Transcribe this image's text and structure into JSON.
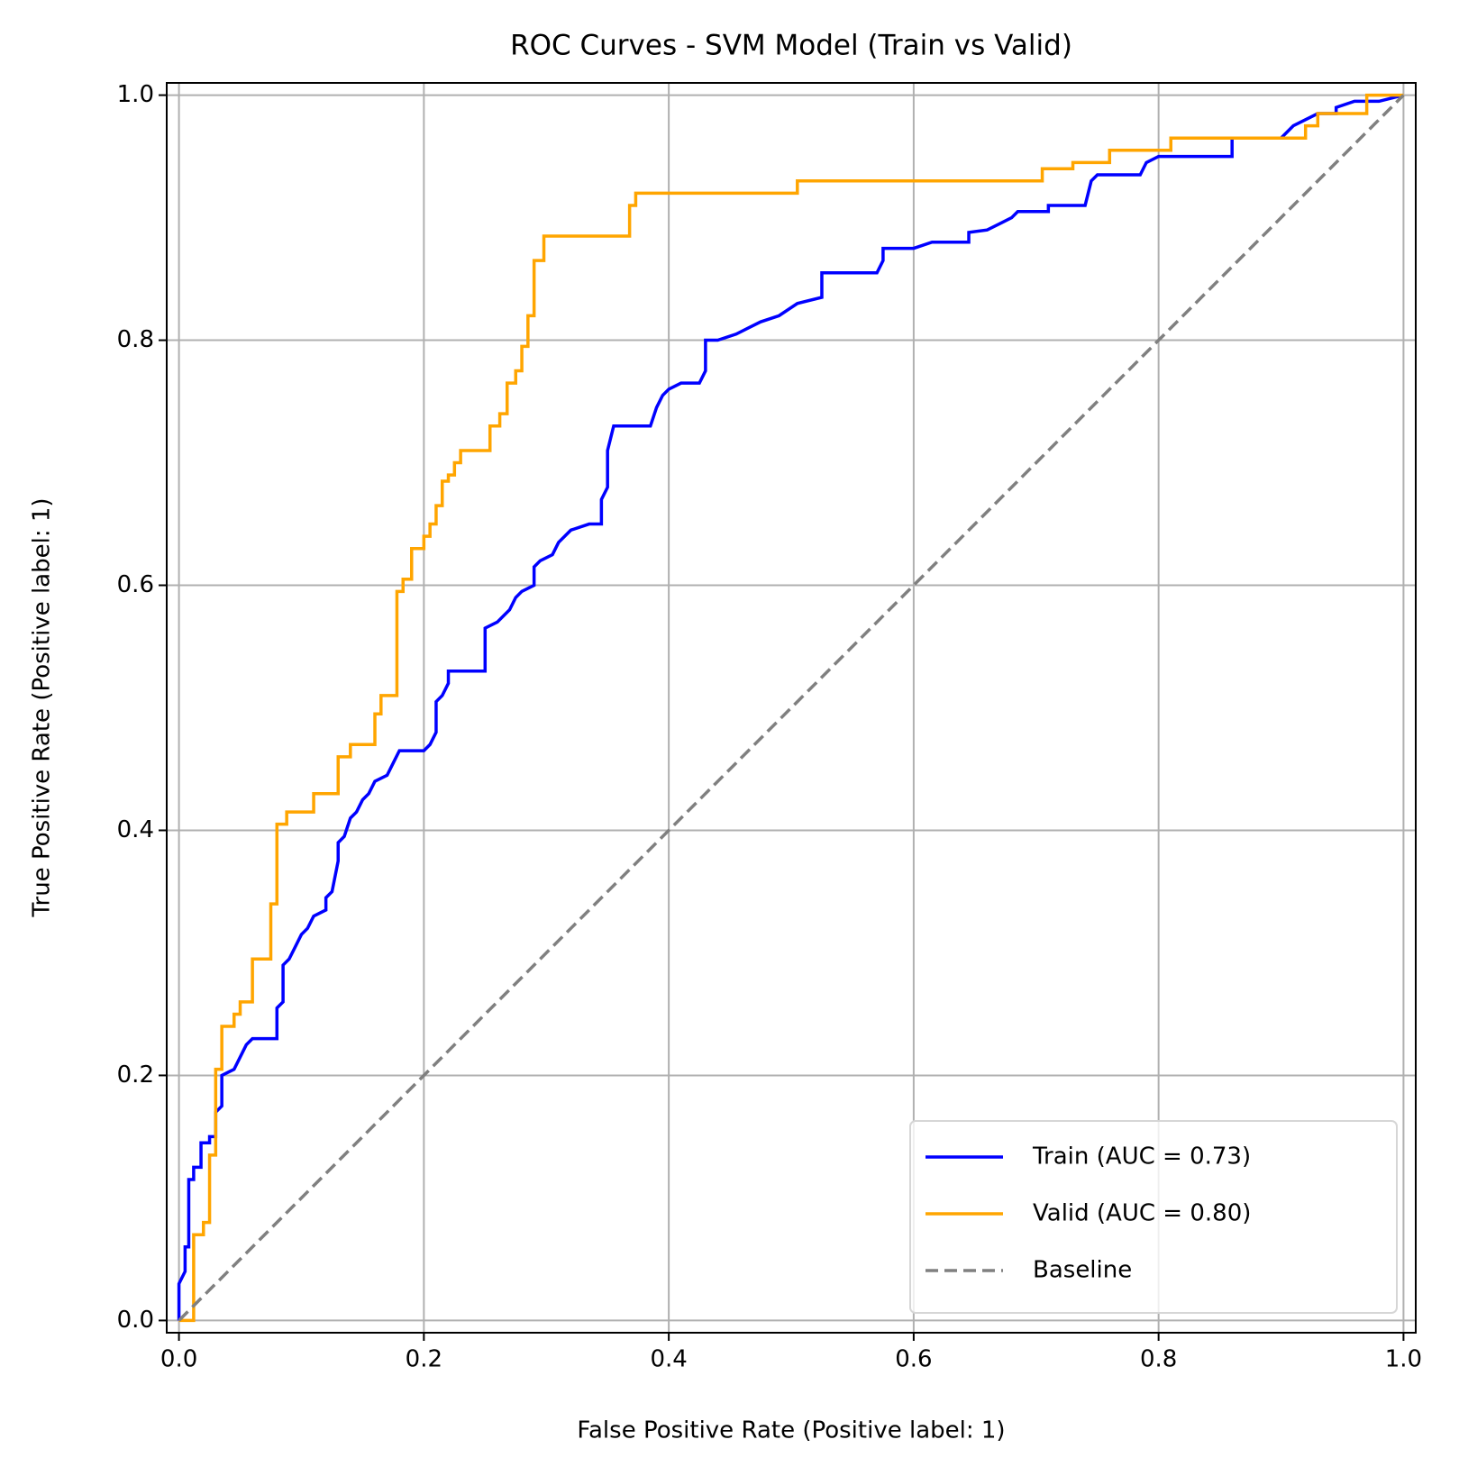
{
  "chart_data": {
    "type": "line",
    "title": "ROC Curves - SVM Model (Train vs Valid)",
    "x_label": "False Positive Rate (Positive label: 1)",
    "y_label": "True Positive Rate (Positive label: 1)",
    "xlim": [
      -0.01,
      1.01
    ],
    "ylim": [
      -0.01,
      1.01
    ],
    "xticks": [
      {
        "value": 0,
        "label": "0.0"
      },
      0.2,
      0.4,
      0.6,
      0.8,
      {
        "value": 1,
        "label": "1.0"
      }
    ],
    "yticks": [
      {
        "value": 0,
        "label": "0.0"
      },
      0.2,
      0.4,
      0.6,
      0.8,
      {
        "value": 1,
        "label": "1.0"
      }
    ],
    "grid": true,
    "legend": "lower right",
    "series": [
      {
        "name": "Train (AUC = 0.73)",
        "color": "#0000ff",
        "line_style": "solid",
        "x": [
          0,
          0,
          0.005,
          0.005,
          0.008,
          0.008,
          0.012,
          0.012,
          0.018,
          0.018,
          0.025,
          0.025,
          0.03,
          0.03,
          0.035,
          0.035,
          0.045,
          0.05,
          0.055,
          0.06,
          0.08,
          0.08,
          0.085,
          0.085,
          0.09,
          0.095,
          0.1,
          0.105,
          0.11,
          0.12,
          0.12,
          0.125,
          0.13,
          0.13,
          0.135,
          0.14,
          0.145,
          0.15,
          0.155,
          0.16,
          0.17,
          0.175,
          0.18,
          0.2,
          0.205,
          0.21,
          0.21,
          0.215,
          0.22,
          0.22,
          0.25,
          0.25,
          0.26,
          0.265,
          0.27,
          0.275,
          0.28,
          0.29,
          0.29,
          0.295,
          0.305,
          0.31,
          0.315,
          0.32,
          0.335,
          0.345,
          0.345,
          0.35,
          0.35,
          0.355,
          0.385,
          0.39,
          0.395,
          0.4,
          0.41,
          0.425,
          0.43,
          0.43,
          0.44,
          0.455,
          0.465,
          0.475,
          0.49,
          0.505,
          0.525,
          0.525,
          0.57,
          0.575,
          0.575,
          0.6,
          0.615,
          0.645,
          0.645,
          0.66,
          0.67,
          0.68,
          0.685,
          0.71,
          0.71,
          0.74,
          0.745,
          0.75,
          0.785,
          0.79,
          0.8,
          0.86,
          0.86,
          0.9,
          0.91,
          0.93,
          0.945,
          0.945,
          0.96,
          0.98,
          1
        ],
        "values": [
          0,
          0.03,
          0.04,
          0.06,
          0.06,
          0.115,
          0.115,
          0.125,
          0.125,
          0.145,
          0.145,
          0.15,
          0.15,
          0.17,
          0.175,
          0.2,
          0.205,
          0.215,
          0.225,
          0.23,
          0.23,
          0.255,
          0.26,
          0.29,
          0.295,
          0.305,
          0.315,
          0.32,
          0.33,
          0.335,
          0.345,
          0.35,
          0.375,
          0.39,
          0.395,
          0.41,
          0.415,
          0.425,
          0.43,
          0.44,
          0.445,
          0.455,
          0.465,
          0.465,
          0.47,
          0.48,
          0.505,
          0.51,
          0.52,
          0.53,
          0.53,
          0.565,
          0.57,
          0.575,
          0.58,
          0.59,
          0.595,
          0.6,
          0.615,
          0.62,
          0.625,
          0.635,
          0.64,
          0.645,
          0.65,
          0.65,
          0.67,
          0.68,
          0.71,
          0.73,
          0.73,
          0.745,
          0.755,
          0.76,
          0.765,
          0.765,
          0.775,
          0.8,
          0.8,
          0.805,
          0.81,
          0.815,
          0.82,
          0.83,
          0.835,
          0.855,
          0.855,
          0.865,
          0.875,
          0.875,
          0.88,
          0.88,
          0.888,
          0.89,
          0.895,
          0.9,
          0.905,
          0.905,
          0.91,
          0.91,
          0.93,
          0.935,
          0.935,
          0.945,
          0.95,
          0.95,
          0.965,
          0.965,
          0.975,
          0.985,
          0.985,
          0.99,
          0.995,
          0.995,
          1
        ]
      },
      {
        "name": "Valid (AUC = 0.80)",
        "color": "#ffa500",
        "line_style": "solid",
        "x": [
          0,
          0.012,
          0.012,
          0.02,
          0.02,
          0.025,
          0.025,
          0.03,
          0.03,
          0.035,
          0.035,
          0.045,
          0.045,
          0.05,
          0.05,
          0.06,
          0.06,
          0.075,
          0.075,
          0.08,
          0.08,
          0.088,
          0.088,
          0.11,
          0.11,
          0.13,
          0.13,
          0.14,
          0.14,
          0.16,
          0.16,
          0.165,
          0.165,
          0.178,
          0.178,
          0.183,
          0.183,
          0.19,
          0.19,
          0.2,
          0.2,
          0.205,
          0.205,
          0.21,
          0.21,
          0.215,
          0.215,
          0.22,
          0.22,
          0.225,
          0.225,
          0.23,
          0.23,
          0.254,
          0.254,
          0.262,
          0.262,
          0.268,
          0.268,
          0.275,
          0.275,
          0.28,
          0.28,
          0.285,
          0.285,
          0.29,
          0.29,
          0.298,
          0.298,
          0.368,
          0.368,
          0.373,
          0.373,
          0.505,
          0.505,
          0.705,
          0.705,
          0.73,
          0.73,
          0.76,
          0.76,
          0.81,
          0.81,
          0.92,
          0.92,
          0.93,
          0.93,
          0.97,
          0.97,
          1
        ],
        "values": [
          0,
          0,
          0.07,
          0.07,
          0.08,
          0.08,
          0.135,
          0.135,
          0.205,
          0.205,
          0.24,
          0.24,
          0.25,
          0.25,
          0.26,
          0.26,
          0.295,
          0.295,
          0.34,
          0.34,
          0.405,
          0.405,
          0.415,
          0.415,
          0.43,
          0.43,
          0.46,
          0.46,
          0.47,
          0.47,
          0.495,
          0.495,
          0.51,
          0.51,
          0.595,
          0.595,
          0.605,
          0.605,
          0.63,
          0.63,
          0.64,
          0.64,
          0.65,
          0.65,
          0.665,
          0.665,
          0.685,
          0.685,
          0.69,
          0.69,
          0.7,
          0.7,
          0.71,
          0.71,
          0.73,
          0.73,
          0.74,
          0.74,
          0.765,
          0.765,
          0.775,
          0.775,
          0.795,
          0.795,
          0.82,
          0.82,
          0.865,
          0.865,
          0.885,
          0.885,
          0.91,
          0.91,
          0.92,
          0.92,
          0.93,
          0.93,
          0.94,
          0.94,
          0.945,
          0.945,
          0.955,
          0.955,
          0.965,
          0.965,
          0.975,
          0.975,
          0.985,
          0.985,
          1,
          1
        ]
      },
      {
        "name": "Baseline",
        "color": "#808080",
        "line_style": "dashed",
        "x": [
          0,
          1
        ],
        "values": [
          0,
          1
        ]
      }
    ]
  }
}
